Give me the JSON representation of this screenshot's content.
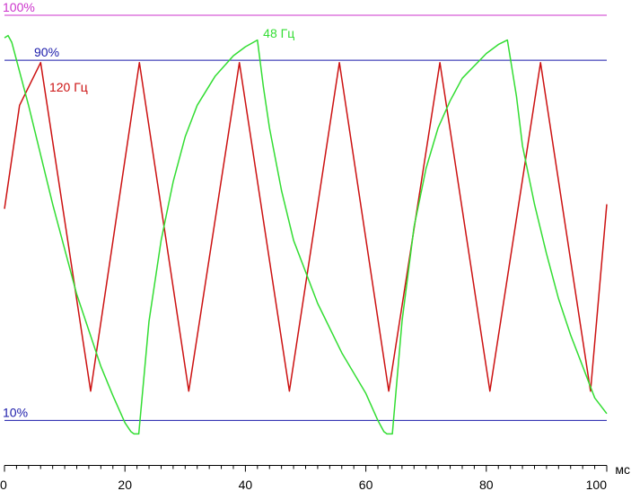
{
  "chart_data": {
    "type": "line",
    "x_unit_label": "мс",
    "xlim": [
      0,
      100
    ],
    "ylim": [
      0,
      100
    ],
    "x_ticks": [
      0,
      20,
      40,
      60,
      80,
      100
    ],
    "x_tick_labels": [
      "0",
      "20",
      "40",
      "60",
      "80",
      "100"
    ],
    "reference_lines": [
      {
        "label": "100%",
        "y": 100,
        "color": "#cc33cc"
      },
      {
        "label": "90%",
        "y": 90,
        "color": "#1a1aaa"
      },
      {
        "label": "10%",
        "y": 10,
        "color": "#1a1aaa"
      }
    ],
    "series": [
      {
        "name": "120 Гц",
        "color": "#cc1111",
        "points": [
          [
            0,
            57
          ],
          [
            2.5,
            80
          ],
          [
            6.0,
            89.5
          ],
          [
            14.3,
            16.5
          ],
          [
            22.4,
            89.5
          ],
          [
            30.6,
            16.5
          ],
          [
            39.0,
            89.5
          ],
          [
            47.3,
            16.5
          ],
          [
            55.6,
            89.5
          ],
          [
            63.8,
            16.5
          ],
          [
            72.3,
            89.5
          ],
          [
            80.6,
            16.5
          ],
          [
            89.0,
            89.5
          ],
          [
            97.3,
            16.5
          ],
          [
            100,
            58
          ]
        ]
      },
      {
        "name": "48 Гц",
        "color": "#33dd33",
        "points": [
          [
            0,
            95
          ],
          [
            0.6,
            95.5
          ],
          [
            1.2,
            94
          ],
          [
            4,
            80
          ],
          [
            8,
            58
          ],
          [
            12,
            38
          ],
          [
            16,
            22
          ],
          [
            18,
            15.5
          ],
          [
            20,
            9.5
          ],
          [
            21,
            7.5
          ],
          [
            21.5,
            7
          ],
          [
            22.3,
            7
          ],
          [
            24,
            32
          ],
          [
            26,
            50
          ],
          [
            28,
            63
          ],
          [
            30,
            73
          ],
          [
            32,
            80
          ],
          [
            35,
            86.5
          ],
          [
            38,
            91
          ],
          [
            40,
            93
          ],
          [
            42,
            94.5
          ],
          [
            43,
            84
          ],
          [
            44,
            75
          ],
          [
            46,
            61
          ],
          [
            48,
            50
          ],
          [
            52,
            36
          ],
          [
            56,
            25
          ],
          [
            60,
            16
          ],
          [
            62,
            10
          ],
          [
            63,
            7.5
          ],
          [
            63.5,
            7
          ],
          [
            64.4,
            7
          ],
          [
            66,
            32
          ],
          [
            68,
            53
          ],
          [
            70,
            66
          ],
          [
            72,
            75
          ],
          [
            74,
            81
          ],
          [
            76,
            86
          ],
          [
            80,
            91.5
          ],
          [
            82,
            93.5
          ],
          [
            83.5,
            94.5
          ],
          [
            85,
            82
          ],
          [
            86,
            71
          ],
          [
            88,
            58
          ],
          [
            90,
            47
          ],
          [
            92,
            37
          ],
          [
            94,
            29
          ],
          [
            96,
            22
          ],
          [
            98,
            15
          ],
          [
            100,
            11.5
          ]
        ]
      }
    ],
    "annotations": [
      {
        "text": "120 Гц",
        "x": 7,
        "y": 84,
        "color": "#cc1111"
      },
      {
        "text": "48 Гц",
        "x": 42.5,
        "y": 96,
        "color": "#33dd33"
      }
    ]
  }
}
